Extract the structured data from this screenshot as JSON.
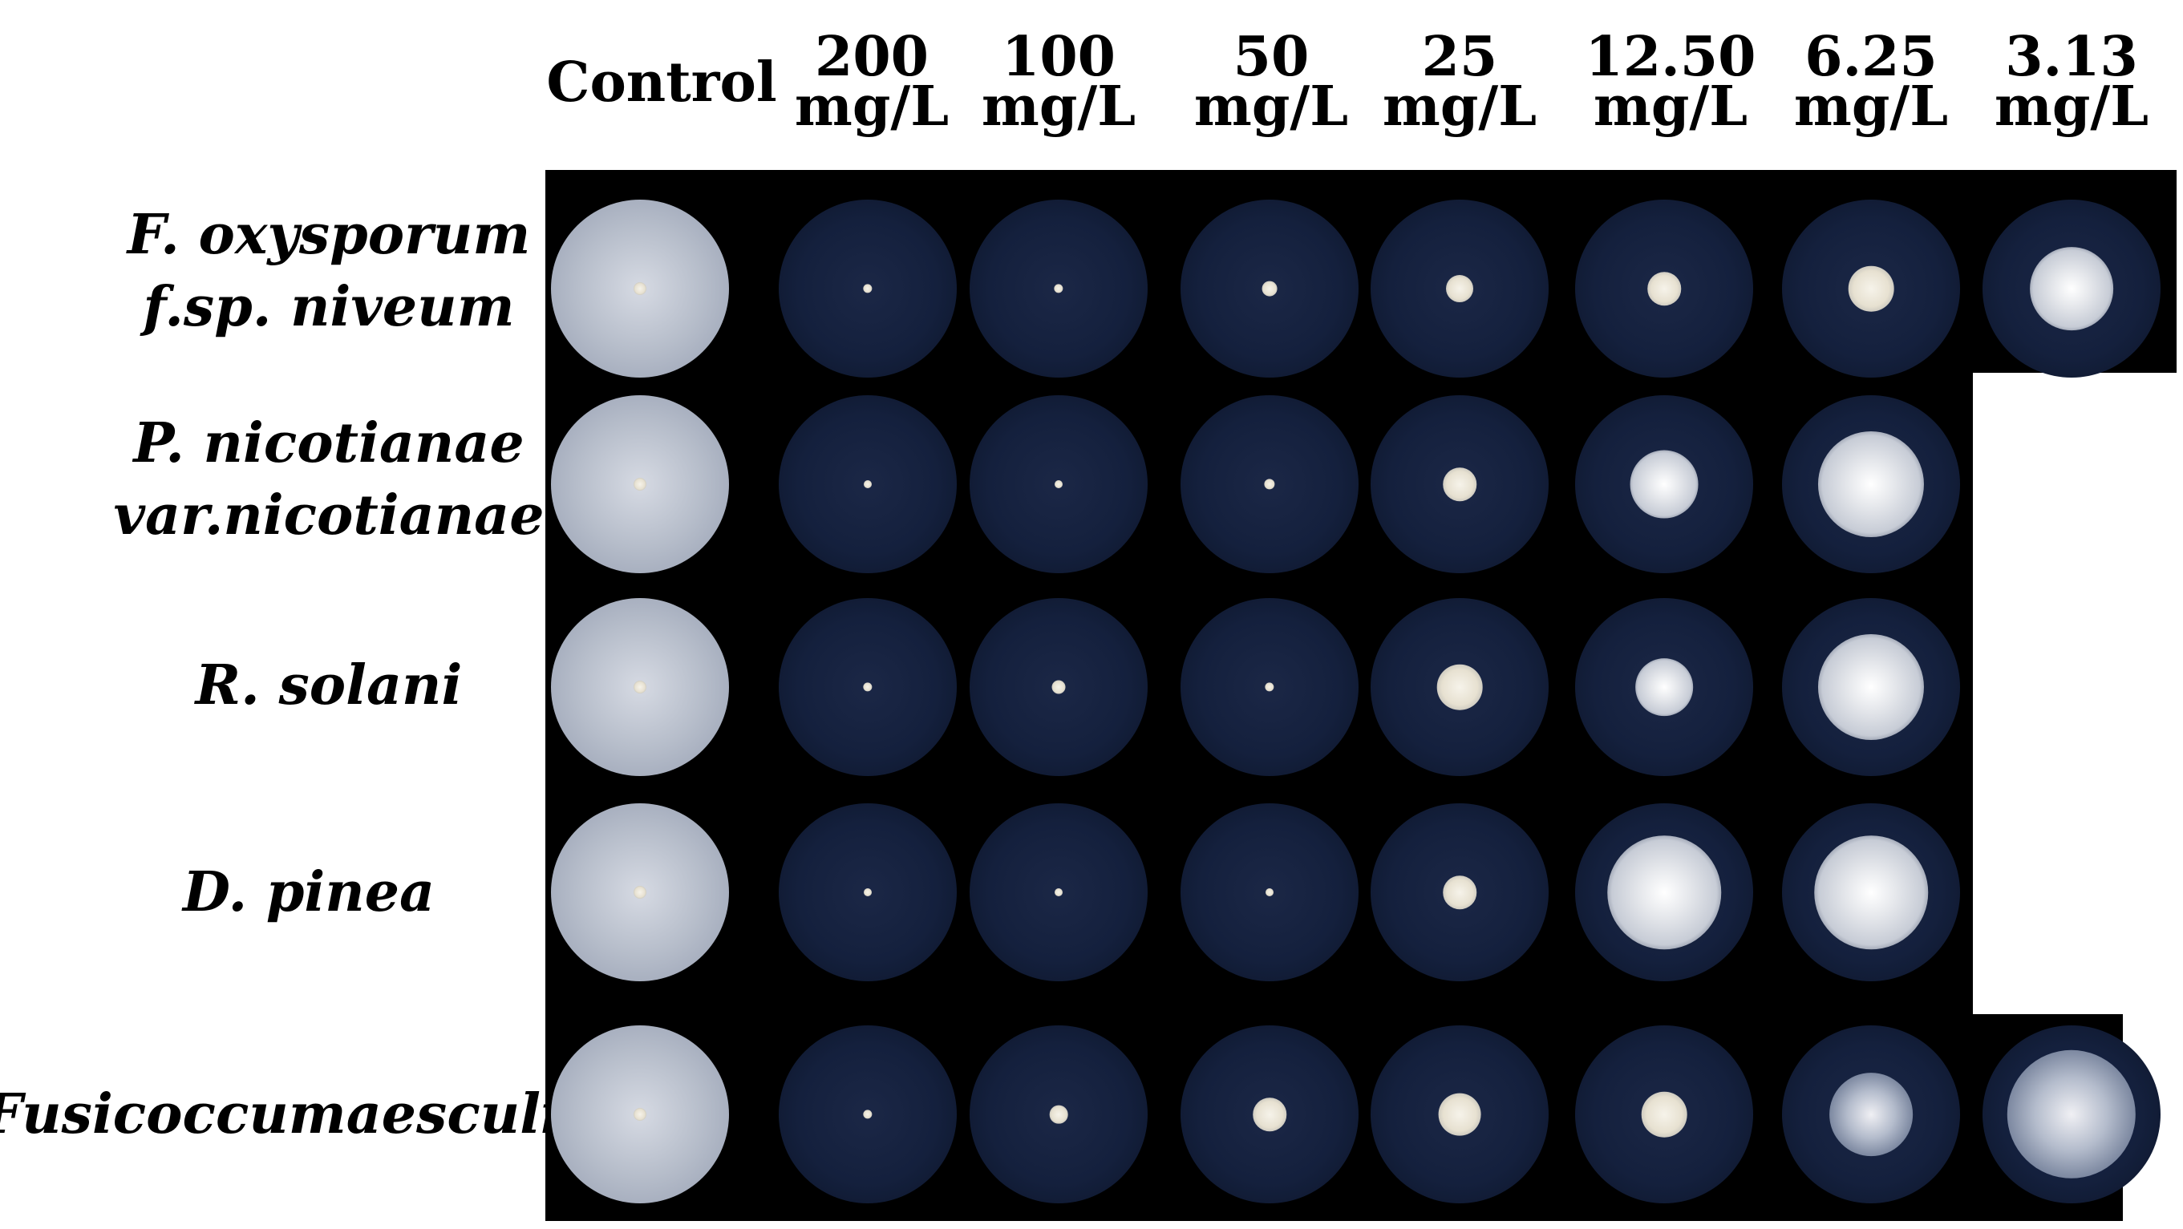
{
  "figure": {
    "columns": [
      "Control",
      "200 mg/L",
      "100 mg/L",
      "50 mg/L",
      "25 mg/L",
      "12.50 mg/L",
      "6.25 mg/L",
      "3.13 mg/L"
    ],
    "column_headers": [
      {
        "line1": "Control",
        "line2": ""
      },
      {
        "line1": "200",
        "line2": "mg/L"
      },
      {
        "line1": "100",
        "line2": "mg/L"
      },
      {
        "line1": "50",
        "line2": "mg/L"
      },
      {
        "line1": "25",
        "line2": "mg/L"
      },
      {
        "line1": "12.50",
        "line2": "mg/L"
      },
      {
        "line1": "6.25",
        "line2": "mg/L"
      },
      {
        "line1": "3.13",
        "line2": "mg/L"
      }
    ],
    "rows": [
      {
        "label_line1": "F. oxysporum",
        "label_line2": "f.sp. niveum",
        "dishes": 8,
        "colony_fraction": [
          1.0,
          0.06,
          0.06,
          0.1,
          0.18,
          0.22,
          0.3,
          0.55
        ]
      },
      {
        "label_line1": "P. nicotianae",
        "label_line2": "var.nicotianae",
        "dishes": 7,
        "colony_fraction": [
          1.0,
          0.05,
          0.05,
          0.07,
          0.22,
          0.45,
          0.7
        ]
      },
      {
        "label_line1": "R. solani",
        "label_line2": "",
        "dishes": 7,
        "colony_fraction": [
          1.0,
          0.06,
          0.09,
          0.06,
          0.3,
          0.38,
          0.7
        ]
      },
      {
        "label_line1": "D. pinea",
        "label_line2": "",
        "dishes": 7,
        "colony_fraction": [
          1.0,
          0.05,
          0.05,
          0.04,
          0.22,
          0.75,
          0.75
        ]
      },
      {
        "label_line1": "Fusicoccumaesculi",
        "label_line2": "",
        "dishes": 8,
        "colony_fraction": [
          1.0,
          0.06,
          0.12,
          0.22,
          0.28,
          0.3,
          0.55,
          0.85
        ]
      }
    ]
  }
}
